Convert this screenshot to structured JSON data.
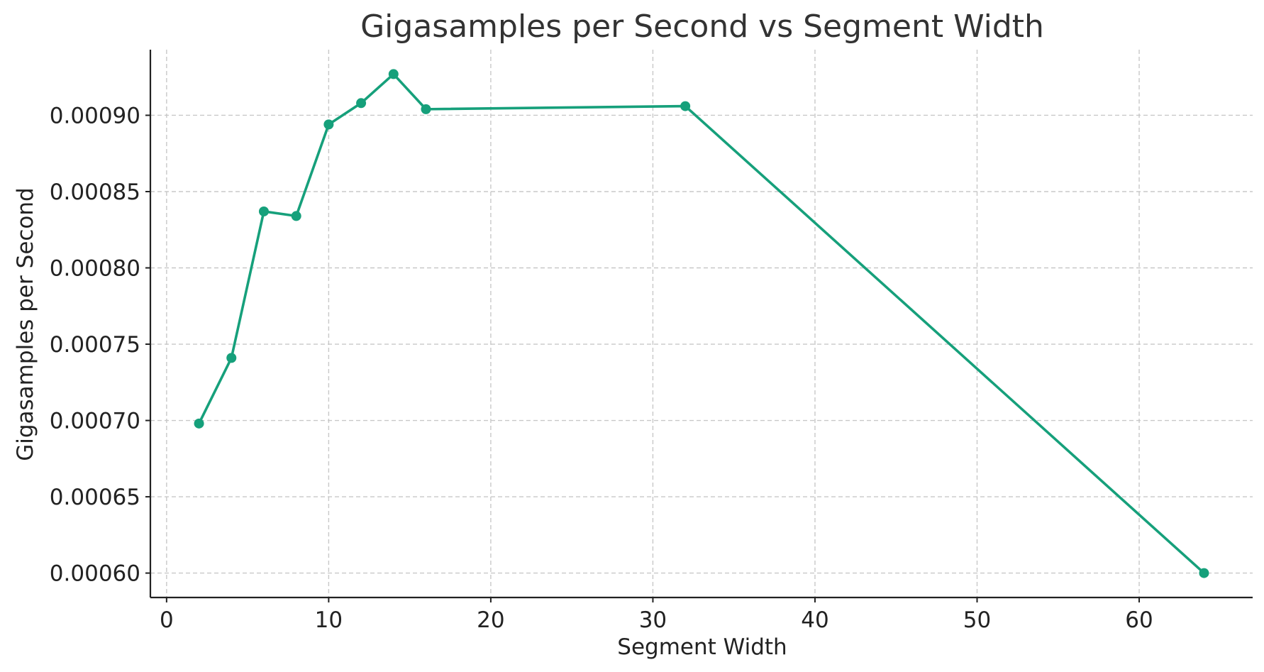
{
  "chart_data": {
    "type": "line",
    "title": "Gigasamples per Second vs Segment Width",
    "xlabel": "Segment Width",
    "ylabel": "Gigasamples per Second",
    "x_ticks": [
      "0",
      "10",
      "20",
      "30",
      "40",
      "50",
      "60"
    ],
    "y_ticks": [
      "0.00060",
      "0.00065",
      "0.00070",
      "0.00075",
      "0.00080",
      "0.00085",
      "0.00090"
    ],
    "xlim": [
      -1,
      67
    ],
    "ylim": [
      0.000584,
      0.000943
    ],
    "grid": true,
    "series": [
      {
        "color": "#16a07b",
        "marker": "circle",
        "x": [
          2,
          4,
          6,
          8,
          10,
          12,
          14,
          16,
          32,
          64
        ],
        "y": [
          0.000698,
          0.000741,
          0.000837,
          0.000834,
          0.000894,
          0.000908,
          0.000927,
          0.000904,
          0.000906,
          0.0006
        ]
      }
    ]
  }
}
